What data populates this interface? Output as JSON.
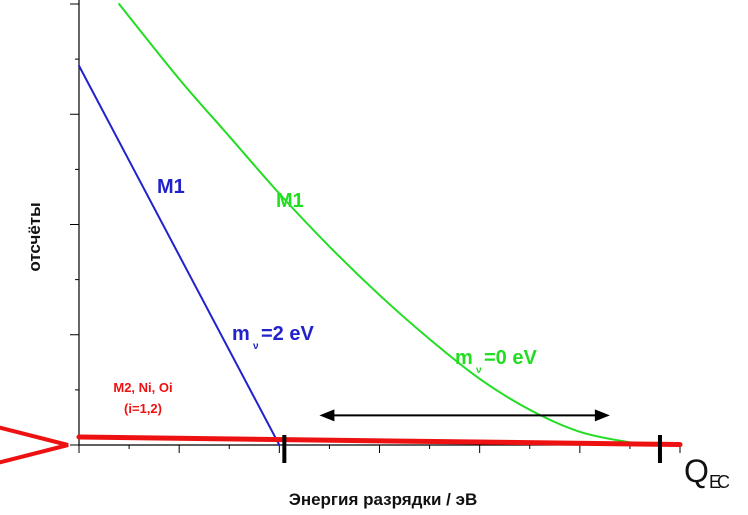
{
  "chart_data": {
    "type": "line",
    "title": "",
    "xlabel": "Энергия разрядки / эВ",
    "ylabel": "отсчёты",
    "x_end_label_main": "Q",
    "x_end_label_sub": "EC",
    "xlim": [
      0,
      12
    ],
    "ylim": [
      0,
      100
    ],
    "grid": false,
    "legend": "none",
    "series": [
      {
        "name": "M1",
        "mass_label": "m",
        "mass_sub": "ν",
        "mass_value": "=0 eV",
        "color": "#22dd22",
        "x": [
          0.8,
          2,
          3,
          4,
          5,
          6,
          7,
          8,
          9,
          10,
          11,
          11.5
        ],
        "y": [
          100,
          83,
          70,
          57,
          45,
          34,
          24,
          15,
          8,
          3,
          0.6,
          0
        ]
      },
      {
        "name": "M1",
        "mass_label": "m",
        "mass_sub": "ν",
        "mass_value": "=2 eV",
        "color": "#2222cc",
        "x": [
          0,
          4
        ],
        "y": [
          86,
          0
        ]
      },
      {
        "name": "M2, Ni, Oi",
        "sub_label": "(i=1,2)",
        "color": "#ee1111",
        "x": [
          0,
          12
        ],
        "y": [
          1.8,
          0.1
        ]
      }
    ],
    "annotations": [
      {
        "type": "double-arrow",
        "x_from": 4.8,
        "x_to": 10.6,
        "y": 4
      },
      {
        "type": "marker",
        "x": 4.1
      },
      {
        "type": "marker",
        "x": 11.6
      }
    ]
  }
}
